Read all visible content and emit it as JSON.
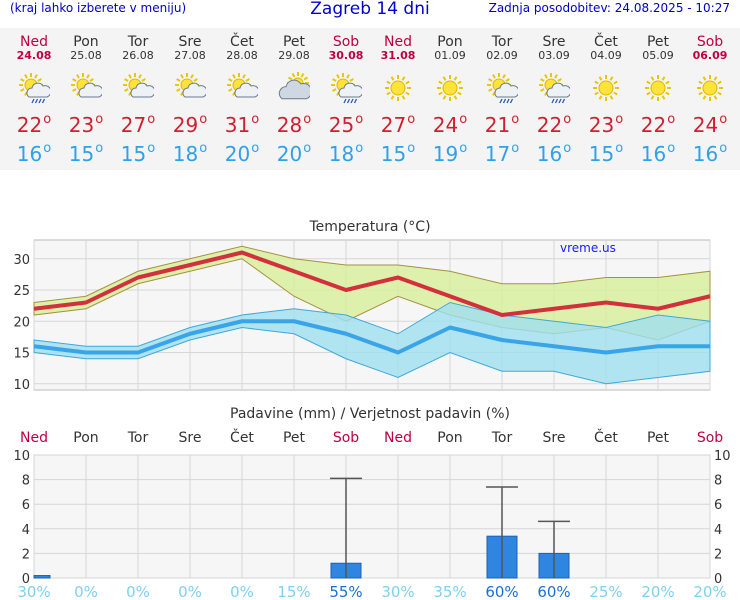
{
  "header": {
    "menu_hint": "(kraj lahko izberete v meniju)",
    "title": "Zagreb 14 dni",
    "updated": "Zadnja posodobitev: 24.08.2025 - 10:27"
  },
  "colors": {
    "weekend": "#c00040",
    "tmax": "#d02030",
    "tmin": "#30a0e8",
    "bar": "#2f86e0",
    "tmax_band": "#d8f09a",
    "tmin_band": "#9fe0f0"
  },
  "days": [
    {
      "name": "Ned",
      "date": "24.08",
      "weekend": true,
      "icon": "sun-cloud-rain",
      "tmax": "22",
      "tmin": "16"
    },
    {
      "name": "Pon",
      "date": "25.08",
      "weekend": false,
      "icon": "sun-cloud",
      "tmax": "23",
      "tmin": "15"
    },
    {
      "name": "Tor",
      "date": "26.08",
      "weekend": false,
      "icon": "sun-cloud",
      "tmax": "27",
      "tmin": "15"
    },
    {
      "name": "Sre",
      "date": "27.08",
      "weekend": false,
      "icon": "sun-cloud",
      "tmax": "29",
      "tmin": "18"
    },
    {
      "name": "Čet",
      "date": "28.08",
      "weekend": false,
      "icon": "sun-cloud",
      "tmax": "31",
      "tmin": "20"
    },
    {
      "name": "Pet",
      "date": "29.08",
      "weekend": false,
      "icon": "cloud-sun",
      "tmax": "28",
      "tmin": "20"
    },
    {
      "name": "Sob",
      "date": "30.08",
      "weekend": true,
      "icon": "sun-cloud-rain",
      "tmax": "25",
      "tmin": "18"
    },
    {
      "name": "Ned",
      "date": "31.08",
      "weekend": true,
      "icon": "sun",
      "tmax": "27",
      "tmin": "15"
    },
    {
      "name": "Pon",
      "date": "01.09",
      "weekend": false,
      "icon": "sun",
      "tmax": "24",
      "tmin": "19"
    },
    {
      "name": "Tor",
      "date": "02.09",
      "weekend": false,
      "icon": "sun-cloud-rain",
      "tmax": "21",
      "tmin": "17"
    },
    {
      "name": "Sre",
      "date": "03.09",
      "weekend": false,
      "icon": "sun-cloud-rain",
      "tmax": "22",
      "tmin": "16"
    },
    {
      "name": "Čet",
      "date": "04.09",
      "weekend": false,
      "icon": "sun",
      "tmax": "23",
      "tmin": "15"
    },
    {
      "name": "Pet",
      "date": "05.09",
      "weekend": false,
      "icon": "sun",
      "tmax": "22",
      "tmin": "16"
    },
    {
      "name": "Sob",
      "date": "06.09",
      "weekend": true,
      "icon": "sun",
      "tmax": "24",
      "tmin": "16"
    }
  ],
  "chart_data": [
    {
      "type": "line",
      "title": "Temperatura (°C)",
      "watermark": "vreme.us",
      "ylim": [
        9,
        33
      ],
      "yticks": [
        10,
        15,
        20,
        25,
        30
      ],
      "grid": true,
      "series": [
        {
          "tmax": [
            22,
            23,
            27,
            29,
            31,
            28,
            25,
            27,
            24,
            21,
            22,
            23,
            22,
            24
          ]
        },
        {
          "tmin": [
            16,
            15,
            15,
            18,
            20,
            20,
            18,
            15,
            19,
            17,
            16,
            15,
            16,
            16
          ]
        },
        {
          "tmax_high": [
            23,
            24,
            28,
            30,
            32,
            30,
            29,
            29,
            28,
            26,
            26,
            27,
            27,
            28
          ]
        },
        {
          "tmax_low": [
            21,
            22,
            26,
            28,
            30,
            24,
            20,
            24,
            21,
            19,
            18,
            19,
            17,
            20
          ]
        },
        {
          "tmin_high": [
            17,
            16,
            16,
            19,
            21,
            22,
            21,
            18,
            23,
            21,
            20,
            19,
            21,
            20
          ]
        },
        {
          "tmin_low": [
            15,
            14,
            14,
            17,
            19,
            18,
            14,
            11,
            15,
            12,
            12,
            10,
            11,
            12
          ]
        }
      ]
    },
    {
      "type": "bar",
      "title": "Padavine (mm) / Verjetnost padavin (%)",
      "ylim": [
        0,
        10
      ],
      "yticks": [
        0,
        2,
        4,
        6,
        8,
        10
      ],
      "categories": [
        "Ned",
        "Pon",
        "Tor",
        "Sre",
        "Čet",
        "Pet",
        "Sob",
        "Ned",
        "Pon",
        "Tor",
        "Sre",
        "Čet",
        "Pet",
        "Sob"
      ],
      "weekend": [
        true,
        false,
        false,
        false,
        false,
        false,
        true,
        true,
        false,
        false,
        false,
        false,
        false,
        true
      ],
      "values": [
        0.2,
        0,
        0,
        0,
        0,
        0,
        1.2,
        0,
        0,
        3.4,
        2.0,
        0,
        0,
        0
      ],
      "error_high": [
        null,
        null,
        null,
        null,
        null,
        null,
        8.1,
        null,
        null,
        7.4,
        4.6,
        null,
        null,
        null
      ],
      "probability": [
        "30%",
        "0%",
        "0%",
        "0%",
        "0%",
        "15%",
        "55%",
        "30%",
        "35%",
        "60%",
        "60%",
        "25%",
        "20%",
        "20%"
      ],
      "probability_values": [
        30,
        0,
        0,
        0,
        0,
        15,
        55,
        30,
        35,
        60,
        60,
        25,
        20,
        20
      ]
    }
  ]
}
